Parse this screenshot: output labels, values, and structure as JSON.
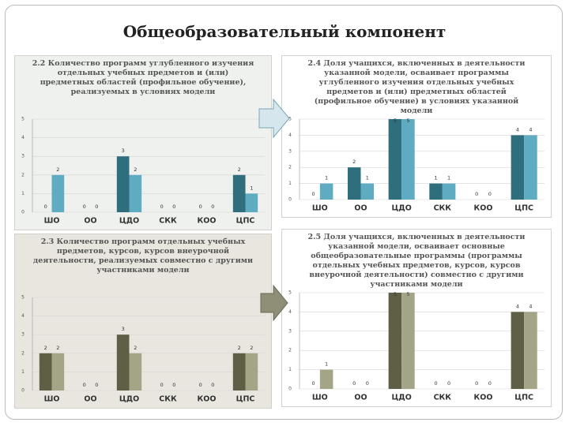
{
  "title": "Общеобразовательный компонент",
  "chart_data": [
    {
      "type": "bar",
      "title": "2.2 Количество программ углубленного изучения отдельных учебных предметов и (или) предметных областей (профильное обучение), реализуемых в условиях модели",
      "categories": [
        "ШО",
        "ОО",
        "ЦДО",
        "СКК",
        "КОО",
        "ЦПС"
      ],
      "series": [
        {
          "color": "#2f6e7c",
          "values": [
            0,
            0,
            3,
            0,
            0,
            2
          ]
        },
        {
          "color": "#5fabc2",
          "values": [
            2,
            0,
            2,
            0,
            0,
            1
          ]
        }
      ],
      "ylim": [
        0,
        5
      ],
      "yticks": [
        0,
        1,
        2,
        3,
        4,
        5
      ],
      "grid": true,
      "data_labels": true
    },
    {
      "type": "bar",
      "title": "2.4 Доля учащихся, включенных в деятельности указанной модели, осваивает программы углубленного изучения отдельных учебных предметов и (или) предметных областей (профильное обучение) в условиях указанной модели",
      "categories": [
        "ШО",
        "ОО",
        "ЦДО",
        "СКК",
        "КОО",
        "ЦПС"
      ],
      "series": [
        {
          "color": "#2f6e7c",
          "values": [
            0,
            2,
            5,
            1,
            0,
            4
          ]
        },
        {
          "color": "#5fabc2",
          "values": [
            1,
            1,
            5,
            1,
            0,
            4
          ]
        }
      ],
      "ylim": [
        0,
        5
      ],
      "yticks": [
        0,
        1,
        2,
        3,
        4,
        5
      ],
      "grid": true,
      "data_labels": true
    },
    {
      "type": "bar",
      "title": "2.3 Количество программ отдельных учебных предметов, курсов, курсов внеурочной деятельности, реализуемых совместно с другими участниками модели",
      "categories": [
        "ШО",
        "ОО",
        "ЦДО",
        "СКК",
        "КОО",
        "ЦПС"
      ],
      "series": [
        {
          "color": "#5f5f45",
          "values": [
            2,
            0,
            3,
            0,
            0,
            2
          ]
        },
        {
          "color": "#a4a486",
          "values": [
            2,
            0,
            2,
            0,
            0,
            2
          ]
        }
      ],
      "ylim": [
        0,
        5
      ],
      "yticks": [
        0,
        1,
        2,
        3,
        4,
        5
      ],
      "grid": true,
      "data_labels": true
    },
    {
      "type": "bar",
      "title": "2.5 Доля учащихся, включенных в деятельности указанной модели, осваивает основные общеобразовательные программы (программы отдельных учебных предметов, курсов, курсов внеурочной деятельности) совместно с другими участниками модели",
      "categories": [
        "ШО",
        "ОО",
        "ЦДО",
        "СКК",
        "КОО",
        "ЦПС"
      ],
      "series": [
        {
          "color": "#5f5f45",
          "values": [
            0,
            0,
            5,
            0,
            0,
            4
          ]
        },
        {
          "color": "#a4a486",
          "values": [
            1,
            0,
            5,
            0,
            0,
            4
          ]
        }
      ],
      "ylim": [
        0,
        5
      ],
      "yticks": [
        0,
        1,
        2,
        3,
        4,
        5
      ],
      "grid": true,
      "data_labels": true
    }
  ]
}
